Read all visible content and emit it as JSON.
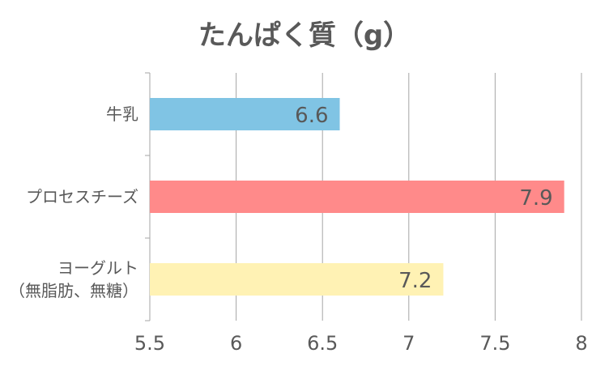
{
  "chart_data": {
    "type": "bar",
    "orientation": "horizontal",
    "title": "たんぱく質（g）",
    "xlabel": "",
    "ylabel": "",
    "xlim": [
      5.5,
      8
    ],
    "xticks": [
      "5.5",
      "6",
      "6.5",
      "7",
      "7.5",
      "8"
    ],
    "xtick_values": [
      5.5,
      6,
      6.5,
      7,
      7.5,
      8
    ],
    "grid": true,
    "categories": [
      {
        "lines": [
          "牛乳"
        ],
        "value": 6.6,
        "label": "6.6",
        "color": "#80c4e4"
      },
      {
        "lines": [
          "プロセスチーズ"
        ],
        "value": 7.9,
        "label": "7.9",
        "color": "#ff8a8a"
      },
      {
        "lines": [
          "ヨーグルト",
          "（無脂肪、無糖）"
        ],
        "value": 7.2,
        "label": "7.2",
        "color": "#fff2b4"
      }
    ]
  }
}
